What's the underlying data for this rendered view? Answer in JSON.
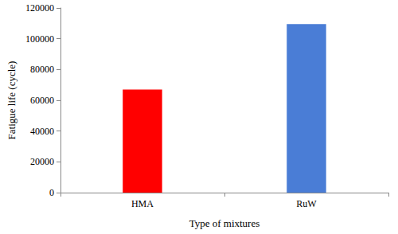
{
  "chart_data": {
    "type": "bar",
    "x_label": "Type of mixtures",
    "y_label": "Fatigue life (cycle)",
    "categories": [
      "HMA",
      "RuW"
    ],
    "values": [
      67000,
      109500
    ],
    "colors": [
      "#ff0000",
      "#4a7dd6"
    ],
    "ylim": [
      0,
      120000
    ],
    "yticks": [
      0,
      20000,
      40000,
      60000,
      80000,
      100000,
      120000
    ],
    "grid": false
  }
}
